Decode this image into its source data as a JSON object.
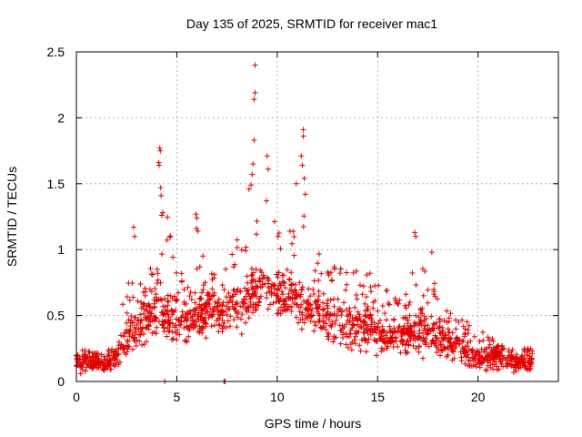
{
  "chart_data": {
    "type": "scatter",
    "title": "Day 135 of 2025, SRMTID for receiver mac1",
    "xlabel": "GPS time / hours",
    "ylabel": "SRMTID / TECUs",
    "xlim": [
      0,
      24
    ],
    "ylim": [
      0,
      2.5
    ],
    "x_ticks": [
      0,
      5,
      10,
      15,
      20
    ],
    "x_tick_labels": [
      "0",
      "5",
      "10",
      "15",
      "20"
    ],
    "y_ticks": [
      0,
      0.5,
      1,
      1.5,
      2,
      2.5
    ],
    "y_tick_labels": [
      "0",
      "0.5",
      "1",
      "1.5",
      "2",
      "2.5"
    ],
    "grid": true,
    "series": [
      {
        "name": "SRMTID",
        "marker": "plus",
        "color": "#e00000",
        "description": "Several thousand '+' markers, dense band; values summarize the visible point cloud",
        "envelope": {
          "x": [
            0,
            1,
            1.5,
            2,
            2.5,
            3,
            3.5,
            4,
            4.5,
            5,
            5.5,
            6,
            6.5,
            7,
            7.5,
            8,
            8.5,
            9,
            9.5,
            10,
            10.5,
            11,
            11.5,
            12,
            12.5,
            13,
            13.5,
            14,
            14.5,
            15,
            15.5,
            16,
            16.5,
            17,
            17.5,
            18,
            18.5,
            19,
            19.5,
            20,
            20.5,
            21,
            21.5,
            22,
            22.7
          ],
          "low": [
            0.05,
            0.06,
            0.05,
            0.08,
            0.12,
            0.18,
            0.22,
            0.25,
            0.22,
            0.2,
            0.18,
            0.22,
            0.25,
            0.28,
            0.3,
            0.32,
            0.35,
            0.4,
            0.45,
            0.45,
            0.4,
            0.35,
            0.3,
            0.3,
            0.25,
            0.22,
            0.2,
            0.2,
            0.18,
            0.15,
            0.15,
            0.15,
            0.15,
            0.15,
            0.15,
            0.15,
            0.14,
            0.12,
            0.08,
            0.05,
            0.05,
            0.05,
            0.05,
            0.05,
            0.05
          ],
          "mid": [
            0.15,
            0.15,
            0.12,
            0.18,
            0.3,
            0.4,
            0.48,
            0.5,
            0.48,
            0.45,
            0.45,
            0.5,
            0.5,
            0.52,
            0.55,
            0.58,
            0.62,
            0.68,
            0.72,
            0.7,
            0.65,
            0.62,
            0.55,
            0.52,
            0.48,
            0.45,
            0.42,
            0.42,
            0.4,
            0.35,
            0.33,
            0.35,
            0.38,
            0.4,
            0.38,
            0.32,
            0.3,
            0.28,
            0.22,
            0.18,
            0.17,
            0.18,
            0.17,
            0.15,
            0.15
          ],
          "high": [
            0.25,
            0.22,
            0.2,
            0.45,
            0.7,
            1.0,
            0.85,
            1.0,
            1.3,
            0.9,
            0.75,
            1.2,
            0.95,
            0.8,
            0.9,
            1.15,
            1.55,
            1.5,
            1.4,
            1.2,
            1.1,
            1.45,
            1.2,
            1.0,
            0.9,
            0.9,
            0.85,
            0.85,
            0.85,
            0.75,
            0.7,
            0.7,
            0.8,
            0.95,
            0.85,
            0.7,
            0.55,
            0.5,
            0.45,
            0.4,
            0.35,
            0.32,
            0.3,
            0.25,
            0.25
          ]
        },
        "spikes": [
          {
            "x": 4.15,
            "y": 1.77
          },
          {
            "x": 4.18,
            "y": 1.75
          },
          {
            "x": 4.1,
            "y": 1.66
          },
          {
            "x": 4.12,
            "y": 1.64
          },
          {
            "x": 4.2,
            "y": 1.47
          },
          {
            "x": 4.22,
            "y": 1.41
          },
          {
            "x": 4.3,
            "y": 1.28
          },
          {
            "x": 4.25,
            "y": 1.26
          },
          {
            "x": 2.85,
            "y": 1.17
          },
          {
            "x": 2.9,
            "y": 1.1
          },
          {
            "x": 5.95,
            "y": 1.27
          },
          {
            "x": 6.0,
            "y": 1.24
          },
          {
            "x": 6.05,
            "y": 1.14
          },
          {
            "x": 8.8,
            "y": 1.65
          },
          {
            "x": 8.85,
            "y": 1.83
          },
          {
            "x": 8.85,
            "y": 2.14
          },
          {
            "x": 8.9,
            "y": 2.19
          },
          {
            "x": 8.9,
            "y": 2.4
          },
          {
            "x": 8.7,
            "y": 1.49
          },
          {
            "x": 8.75,
            "y": 1.57
          },
          {
            "x": 9.5,
            "y": 1.71
          },
          {
            "x": 9.55,
            "y": 1.61
          },
          {
            "x": 11.3,
            "y": 1.91
          },
          {
            "x": 11.3,
            "y": 1.86
          },
          {
            "x": 11.2,
            "y": 1.71
          },
          {
            "x": 11.25,
            "y": 1.64
          },
          {
            "x": 11.35,
            "y": 1.54
          },
          {
            "x": 10.95,
            "y": 1.5
          },
          {
            "x": 11.4,
            "y": 1.42
          },
          {
            "x": 16.85,
            "y": 1.13
          },
          {
            "x": 16.9,
            "y": 1.1
          },
          {
            "x": 17.7,
            "y": 0.98
          }
        ],
        "zero_markers": [
          {
            "x": 4.4,
            "y": 0.0
          },
          {
            "x": 7.35,
            "y": 0.0
          },
          {
            "x": 7.4,
            "y": 0.0
          }
        ]
      }
    ]
  }
}
